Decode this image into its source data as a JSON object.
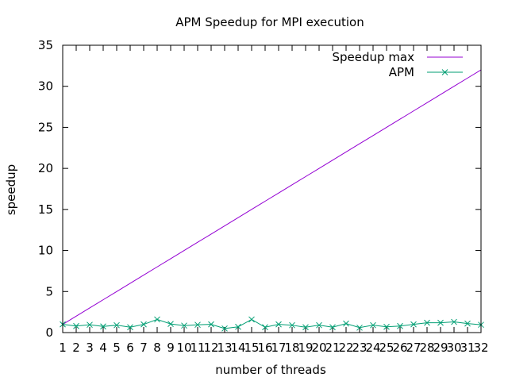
{
  "chart_data": {
    "type": "line",
    "title": "APM Speedup for MPI execution",
    "xlabel": "number of threads",
    "ylabel": "speedup",
    "x": [
      1,
      2,
      3,
      4,
      5,
      6,
      7,
      8,
      9,
      10,
      11,
      12,
      13,
      14,
      15,
      16,
      17,
      18,
      19,
      20,
      21,
      22,
      23,
      24,
      25,
      26,
      27,
      28,
      29,
      30,
      31,
      32
    ],
    "xlim": [
      1,
      32
    ],
    "ylim": [
      0,
      35
    ],
    "xticks": [
      "1",
      "2",
      "3",
      "4",
      "5",
      "6",
      "7",
      "8",
      "9",
      "10",
      "11",
      "12",
      "13",
      "14",
      "15",
      "16",
      "17",
      "18",
      "19",
      "20",
      "21",
      "22",
      "23",
      "24",
      "25",
      "26",
      "27",
      "28",
      "29",
      "30",
      "31",
      "32"
    ],
    "yticks": [
      0,
      5,
      10,
      15,
      20,
      25,
      30,
      35
    ],
    "grid": false,
    "legend_position": "top-right",
    "series": [
      {
        "name": "Speedup max",
        "color": "#9400d3",
        "marker": "none",
        "values": [
          1,
          2,
          3,
          4,
          5,
          6,
          7,
          8,
          9,
          10,
          11,
          12,
          13,
          14,
          15,
          16,
          17,
          18,
          19,
          20,
          21,
          22,
          23,
          24,
          25,
          26,
          27,
          28,
          29,
          30,
          31,
          32
        ]
      },
      {
        "name": "APM",
        "color": "#009e73",
        "marker": "x",
        "values": [
          1.0,
          0.8,
          0.95,
          0.75,
          0.9,
          0.65,
          1.0,
          1.6,
          1.05,
          0.85,
          0.95,
          1.0,
          0.5,
          0.7,
          1.6,
          0.65,
          1.0,
          0.9,
          0.65,
          0.9,
          0.65,
          1.1,
          0.6,
          0.9,
          0.7,
          0.8,
          1.0,
          1.2,
          1.2,
          1.3,
          1.1,
          0.95
        ]
      }
    ]
  }
}
